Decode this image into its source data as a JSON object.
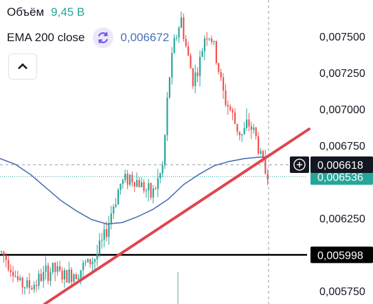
{
  "legend": {
    "volume_label": "Объём",
    "volume_value": "9,45 B",
    "ema_label": "EMA 200 close",
    "ema_value": "0,006672"
  },
  "icons": {
    "sync": "sync-icon",
    "collapse": "chevron-up-icon",
    "crosshair_add": "plus-circle-icon"
  },
  "colors": {
    "up": "#26a69a",
    "down": "#ef5350",
    "ema": "#4a6fb5",
    "trendline": "#e0454d",
    "price_line": "#26a69a",
    "level_line": "#000000",
    "ema_value": "#4a6fb5",
    "volume_value": "#26a69a"
  },
  "chart_data": {
    "type": "candlestick",
    "y_axis": {
      "ticks": [
        "0,007500",
        "0,007250",
        "0,007000",
        "0,006750",
        "0,006250",
        "0,005750"
      ],
      "tick_values": [
        0.0075,
        0.00725,
        0.007,
        0.00675,
        0.00625,
        0.00575
      ],
      "ylim": [
        0.00566,
        0.00775
      ]
    },
    "price_labels": {
      "crosshair": {
        "text": "0,006618",
        "value": 0.006618
      },
      "last_price": {
        "text": "0,006536",
        "value": 0.006536
      },
      "level": {
        "text": "0,005998",
        "value": 0.005998
      }
    },
    "trendline": {
      "from": [
        0,
        0.00566
      ],
      "to": [
        1,
        0.00681
      ]
    },
    "ema_curve": [
      [
        0.0,
        0.00666
      ],
      [
        0.05,
        0.00662
      ],
      [
        0.1,
        0.00655
      ],
      [
        0.15,
        0.00646
      ],
      [
        0.2,
        0.00637
      ],
      [
        0.25,
        0.0063
      ],
      [
        0.3,
        0.00624
      ],
      [
        0.35,
        0.00621
      ],
      [
        0.4,
        0.00622
      ],
      [
        0.45,
        0.00626
      ],
      [
        0.5,
        0.00631
      ],
      [
        0.55,
        0.00638
      ],
      [
        0.6,
        0.00648
      ],
      [
        0.65,
        0.00655
      ],
      [
        0.7,
        0.00661
      ],
      [
        0.75,
        0.00664
      ],
      [
        0.8,
        0.00666
      ],
      [
        0.85,
        0.00667
      ],
      [
        0.88,
        0.00667
      ]
    ],
    "price_path": [
      [
        0.0,
        0.00602
      ],
      [
        0.03,
        0.00594
      ],
      [
        0.06,
        0.0058
      ],
      [
        0.1,
        0.00578
      ],
      [
        0.13,
        0.00584
      ],
      [
        0.17,
        0.0059
      ],
      [
        0.21,
        0.00584
      ],
      [
        0.26,
        0.0059
      ],
      [
        0.31,
        0.00598
      ],
      [
        0.34,
        0.00612
      ],
      [
        0.36,
        0.00628
      ],
      [
        0.39,
        0.00648
      ],
      [
        0.42,
        0.00654
      ],
      [
        0.45,
        0.0065
      ],
      [
        0.47,
        0.00646
      ],
      [
        0.49,
        0.0064
      ],
      [
        0.51,
        0.00648
      ],
      [
        0.53,
        0.0066
      ],
      [
        0.55,
        0.0072
      ],
      [
        0.57,
        0.00748
      ],
      [
        0.59,
        0.00762
      ],
      [
        0.61,
        0.00738
      ],
      [
        0.63,
        0.0072
      ],
      [
        0.65,
        0.0073
      ],
      [
        0.67,
        0.00754
      ],
      [
        0.69,
        0.00748
      ],
      [
        0.71,
        0.0073
      ],
      [
        0.73,
        0.00708
      ],
      [
        0.75,
        0.007
      ],
      [
        0.77,
        0.00688
      ],
      [
        0.79,
        0.00682
      ],
      [
        0.81,
        0.0069
      ],
      [
        0.83,
        0.00684
      ],
      [
        0.85,
        0.00668
      ],
      [
        0.87,
        0.00654
      ],
      [
        0.88,
        0.00658
      ]
    ]
  }
}
